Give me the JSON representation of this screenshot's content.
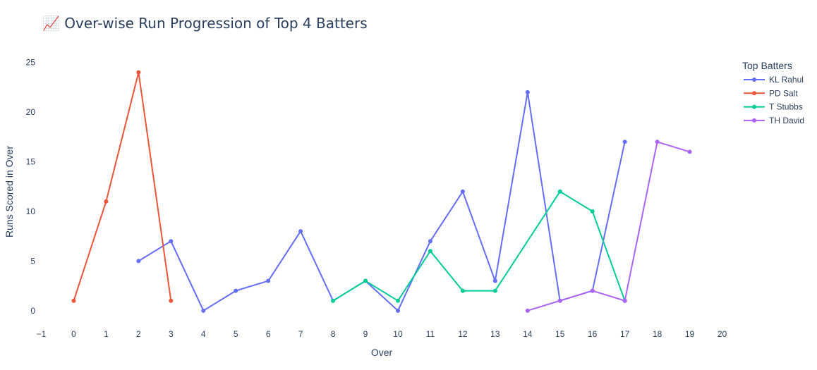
{
  "chart_data": {
    "type": "line",
    "title": "📈 Over-wise Run Progression of Top 4 Batters",
    "xlabel": "Over",
    "ylabel": "Runs Scored in Over",
    "xlim": [
      -1,
      20
    ],
    "ylim": [
      -2,
      26
    ],
    "x_ticks": [
      -1,
      0,
      1,
      2,
      3,
      4,
      5,
      6,
      7,
      8,
      9,
      10,
      11,
      12,
      13,
      14,
      15,
      16,
      17,
      18,
      19,
      20
    ],
    "y_ticks": [
      0,
      5,
      10,
      15,
      20,
      25
    ],
    "tick_labels_x": [
      "−1",
      "0",
      "1",
      "2",
      "3",
      "4",
      "5",
      "6",
      "7",
      "8",
      "9",
      "10",
      "11",
      "12",
      "13",
      "14",
      "15",
      "16",
      "17",
      "18",
      "19",
      "20"
    ],
    "tick_labels_y": [
      "0",
      "5",
      "10",
      "15",
      "20",
      "25"
    ],
    "grid": false,
    "legend_title": "Top Batters",
    "legend_position": "top-right",
    "series": [
      {
        "name": "KL Rahul",
        "color": "#636efa",
        "x": [
          2,
          3,
          4,
          5,
          6,
          7,
          8,
          9,
          10,
          11,
          12,
          13,
          14,
          15,
          16,
          17
        ],
        "y": [
          5,
          7,
          0,
          2,
          3,
          8,
          1,
          3,
          0,
          7,
          12,
          3,
          22,
          1,
          2,
          17
        ]
      },
      {
        "name": "PD Salt",
        "color": "#ef553b",
        "x": [
          0,
          1,
          2,
          3
        ],
        "y": [
          1,
          11,
          24,
          1
        ]
      },
      {
        "name": "T Stubbs",
        "color": "#00cc96",
        "x": [
          8,
          9,
          10,
          11,
          12,
          13,
          15,
          16,
          17
        ],
        "y": [
          1,
          3,
          1,
          6,
          2,
          2,
          12,
          10,
          1
        ]
      },
      {
        "name": "TH David",
        "color": "#ab63fa",
        "x": [
          14,
          15,
          16,
          17,
          18,
          19
        ],
        "y": [
          0,
          1,
          2,
          1,
          17,
          16
        ]
      }
    ]
  }
}
